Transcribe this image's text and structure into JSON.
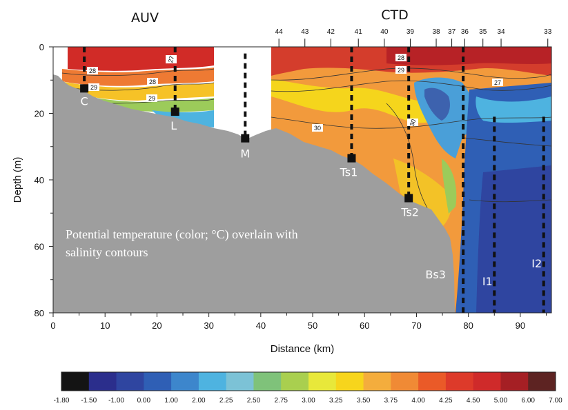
{
  "chart_data": {
    "type": "heatmap",
    "section_labels": [
      "AUV",
      "CTD"
    ],
    "xlabel": "Distance (km)",
    "ylabel": "Depth (m)",
    "xlim": [
      0,
      96
    ],
    "ylim": [
      0,
      80
    ],
    "y_inverted": true,
    "x_ticks": [
      "0",
      "10",
      "20",
      "30",
      "40",
      "50",
      "60",
      "70",
      "80",
      "90"
    ],
    "y_ticks": [
      "0",
      "20",
      "40",
      "60",
      "80"
    ],
    "annotation": [
      "Potential temperature (color; °C) overlain with",
      "salinity contours"
    ],
    "ctd_stations": [
      {
        "label": "44",
        "x": 43.5
      },
      {
        "label": "43",
        "x": 48.5
      },
      {
        "label": "42",
        "x": 53.5
      },
      {
        "label": "41",
        "x": 58.8
      },
      {
        "label": "40",
        "x": 63.8
      },
      {
        "label": "39",
        "x": 68.8
      },
      {
        "label": "38",
        "x": 73.8
      },
      {
        "label": "37",
        "x": 76.8
      },
      {
        "label": "36",
        "x": 79.3
      },
      {
        "label": "35",
        "x": 82.8
      },
      {
        "label": "34",
        "x": 86.3
      },
      {
        "label": "33",
        "x": 95.3
      }
    ],
    "sites": [
      {
        "label": "C",
        "x": 6.0,
        "bottom_depth": 12.5
      },
      {
        "label": "L",
        "x": 23.5,
        "bottom_depth": 19.5
      },
      {
        "label": "M",
        "x": 37.0,
        "bottom_depth": 27.5
      },
      {
        "label": "Ts1",
        "x": 57.5,
        "bottom_depth": 33.5
      },
      {
        "label": "Ts2",
        "x": 68.5,
        "bottom_depth": 45.5
      },
      {
        "label": "Bs3",
        "x": 79.0,
        "bottom_depth": 80
      },
      {
        "label": "I1",
        "x": 85.0,
        "bottom_depth": 80
      },
      {
        "label": "I2",
        "x": 94.5,
        "bottom_depth": 80
      }
    ],
    "salinity_contour_labels": [
      "28",
      "29",
      "28",
      "29",
      "27",
      "28",
      "29",
      "27",
      "30",
      "30"
    ],
    "colorbar": {
      "label": "",
      "ticks": [
        "-1.80",
        "-1.50",
        "-1.00",
        "0.00",
        "1.00",
        "2.00",
        "2.25",
        "2.50",
        "2.75",
        "3.00",
        "3.25",
        "3.50",
        "3.75",
        "4.00",
        "4.25",
        "4.50",
        "5.00",
        "6.00",
        "7.00"
      ],
      "colors": [
        "#141414",
        "#2b2e8c",
        "#2f45a0",
        "#2f5fb5",
        "#3d86cc",
        "#4eb3e0",
        "#7cc2d6",
        "#7fc27a",
        "#a9cf4f",
        "#e8e83a",
        "#f7d51c",
        "#f4ad3d",
        "#f08a35",
        "#ea5a28",
        "#dd3a2a",
        "#cf2a2a",
        "#a51f24",
        "#5d2322"
      ]
    }
  }
}
